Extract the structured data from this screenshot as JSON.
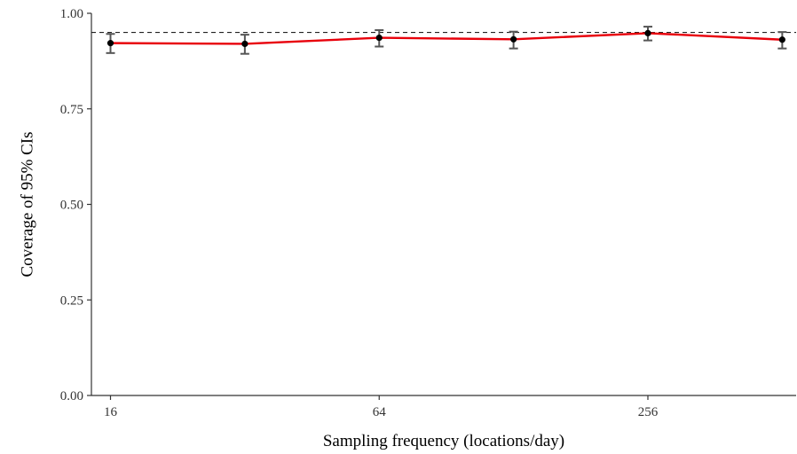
{
  "chart_data": {
    "type": "line",
    "title": "",
    "xlabel": "Sampling frequency (locations/day)",
    "ylabel": "Coverage of 95% CIs",
    "x_scale": "log2",
    "x_ticks": [
      16,
      64,
      256
    ],
    "x_tick_labels": [
      "16",
      "64",
      "256"
    ],
    "xlim": [
      14.5,
      550
    ],
    "ylim": [
      0,
      1
    ],
    "y_ticks": [
      0,
      0.25,
      0.5,
      0.75,
      1.0
    ],
    "y_tick_labels": [
      "0.00",
      "0.25",
      "0.50",
      "0.75",
      "1.00"
    ],
    "reference_line": {
      "y": 0.95,
      "style": "dashed"
    },
    "series": [
      {
        "x": [
          16,
          32,
          64,
          128,
          256,
          512
        ],
        "y": [
          0.922,
          0.92,
          0.936,
          0.932,
          0.948,
          0.931
        ],
        "ci_low": [
          0.896,
          0.894,
          0.913,
          0.908,
          0.929,
          0.908
        ],
        "ci_high": [
          0.946,
          0.944,
          0.956,
          0.952,
          0.965,
          0.951
        ],
        "color": "#e8000b"
      }
    ],
    "grid": false,
    "colors": {
      "line": "#e8000b",
      "point": "#000000",
      "errorbar": "#555555",
      "axis": "#333333"
    }
  }
}
